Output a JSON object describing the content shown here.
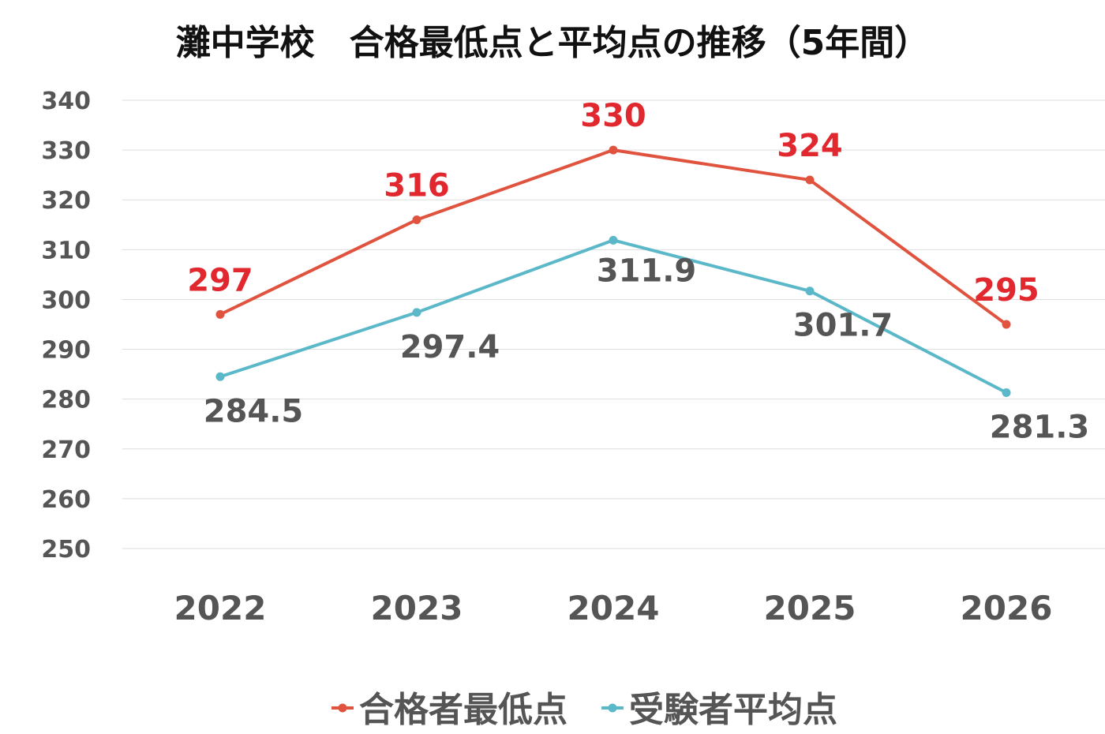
{
  "chart_data": {
    "type": "line",
    "title": "灘中学校　合格最低点と平均点の推移（5年間）",
    "categories": [
      "2022",
      "2023",
      "2024",
      "2025",
      "2026"
    ],
    "ylim": [
      250,
      340
    ],
    "yticks": [
      340,
      330,
      320,
      310,
      300,
      290,
      280,
      270,
      260,
      250
    ],
    "grid": true,
    "legend_position": "bottom",
    "series": [
      {
        "name": "合格者最低点",
        "values": [
          297,
          316,
          330,
          324,
          295
        ],
        "labels": [
          "297",
          "316",
          "330",
          "324",
          "295"
        ],
        "color": "#e0533f",
        "label_color": "#e0282e"
      },
      {
        "name": "受験者平均点",
        "values": [
          284.5,
          297.4,
          311.9,
          301.7,
          281.3
        ],
        "labels": [
          "284.5",
          "297.4",
          "311.9",
          "301.7",
          "281.3"
        ],
        "color": "#5bb8c9",
        "label_color": "#555555"
      }
    ]
  }
}
